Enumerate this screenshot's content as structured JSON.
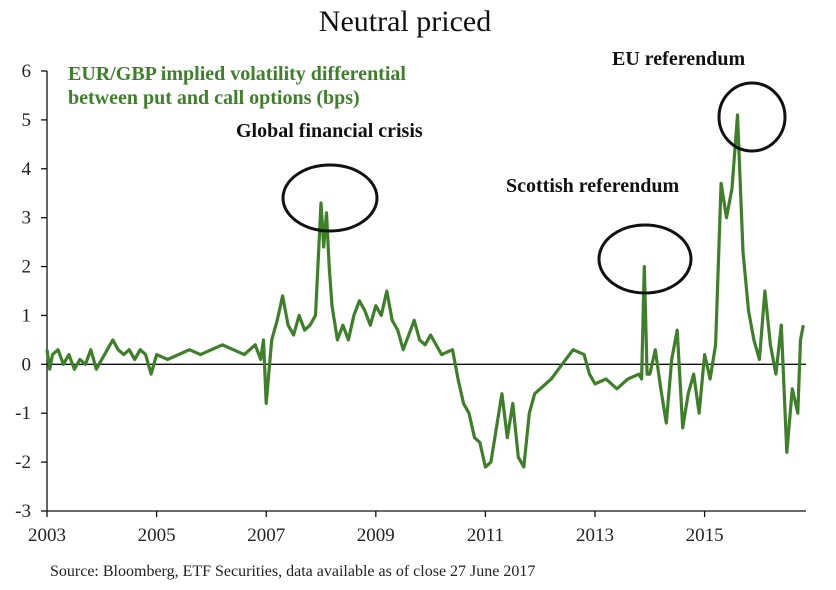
{
  "chart_data": {
    "type": "line",
    "title": "Neutral priced",
    "legend": [
      "EUR/GBP implied volatility differential",
      "between put and call options (bps)"
    ],
    "xlabel": "",
    "ylabel": "",
    "xlim": [
      2003,
      2016.85
    ],
    "ylim": [
      -3,
      6
    ],
    "x_ticks": [
      2003,
      2005,
      2007,
      2009,
      2011,
      2013,
      2015
    ],
    "y_ticks": [
      -3,
      -2,
      -1,
      0,
      1,
      2,
      3,
      4,
      5,
      6
    ],
    "line_color": "#3e7f2a",
    "series": [
      {
        "name": "EUR/GBP implied volatility differential between put and call options (bps)",
        "x": [
          2003.0,
          2003.05,
          2003.1,
          2003.2,
          2003.3,
          2003.4,
          2003.5,
          2003.6,
          2003.7,
          2003.8,
          2003.9,
          2004.0,
          2004.1,
          2004.2,
          2004.3,
          2004.4,
          2004.5,
          2004.6,
          2004.7,
          2004.8,
          2004.9,
          2005.0,
          2005.2,
          2005.4,
          2005.6,
          2005.8,
          2006.0,
          2006.2,
          2006.4,
          2006.6,
          2006.8,
          2006.9,
          2006.95,
          2007.0,
          2007.1,
          2007.2,
          2007.3,
          2007.4,
          2007.5,
          2007.6,
          2007.7,
          2007.8,
          2007.9,
          2008.0,
          2008.05,
          2008.1,
          2008.15,
          2008.2,
          2008.3,
          2008.4,
          2008.5,
          2008.6,
          2008.7,
          2008.8,
          2008.9,
          2009.0,
          2009.1,
          2009.2,
          2009.3,
          2009.4,
          2009.5,
          2009.6,
          2009.7,
          2009.8,
          2009.9,
          2010.0,
          2010.2,
          2010.4,
          2010.5,
          2010.6,
          2010.7,
          2010.8,
          2010.9,
          2011.0,
          2011.1,
          2011.2,
          2011.3,
          2011.4,
          2011.5,
          2011.6,
          2011.7,
          2011.8,
          2011.9,
          2012.0,
          2012.2,
          2012.4,
          2012.6,
          2012.8,
          2012.9,
          2013.0,
          2013.2,
          2013.4,
          2013.6,
          2013.8,
          2013.85,
          2013.9,
          2013.95,
          2014.0,
          2014.1,
          2014.2,
          2014.3,
          2014.4,
          2014.5,
          2014.6,
          2014.7,
          2014.8,
          2014.9,
          2015.0,
          2015.1,
          2015.2,
          2015.3,
          2015.4,
          2015.5,
          2015.6,
          2015.7,
          2015.8,
          2015.9,
          2016.0,
          2016.1,
          2016.2,
          2016.3,
          2016.4,
          2016.5,
          2016.6,
          2016.7,
          2016.75,
          2016.8
        ],
        "y": [
          0.3,
          -0.1,
          0.2,
          0.3,
          0.0,
          0.2,
          -0.1,
          0.1,
          0.0,
          0.3,
          -0.1,
          0.1,
          0.3,
          0.5,
          0.3,
          0.2,
          0.3,
          0.1,
          0.3,
          0.2,
          -0.2,
          0.2,
          0.1,
          0.2,
          0.3,
          0.2,
          0.3,
          0.4,
          0.3,
          0.2,
          0.4,
          0.1,
          0.5,
          -0.8,
          0.5,
          0.9,
          1.4,
          0.8,
          0.6,
          1.0,
          0.7,
          0.8,
          1.0,
          3.3,
          2.4,
          3.1,
          2.0,
          1.2,
          0.5,
          0.8,
          0.5,
          1.0,
          1.3,
          1.1,
          0.8,
          1.2,
          1.0,
          1.5,
          0.9,
          0.7,
          0.3,
          0.6,
          0.9,
          0.5,
          0.4,
          0.6,
          0.2,
          0.3,
          -0.3,
          -0.8,
          -1.0,
          -1.5,
          -1.6,
          -2.1,
          -2.0,
          -1.3,
          -0.6,
          -1.5,
          -0.8,
          -1.9,
          -2.1,
          -1.0,
          -0.6,
          -0.5,
          -0.3,
          0.0,
          0.3,
          0.2,
          -0.2,
          -0.4,
          -0.3,
          -0.5,
          -0.3,
          -0.2,
          -0.3,
          2.0,
          -0.2,
          -0.2,
          0.3,
          -0.5,
          -1.2,
          0.1,
          0.7,
          -1.3,
          -0.6,
          -0.2,
          -1.0,
          0.2,
          -0.3,
          0.4,
          3.7,
          3.0,
          3.6,
          5.1,
          2.3,
          1.1,
          0.5,
          0.1,
          1.5,
          0.4,
          -0.2,
          0.8,
          -1.8,
          -0.5,
          -1.0,
          0.5,
          0.8
        ]
      }
    ],
    "annotations": [
      {
        "label": "Global financial crisis",
        "x": 2008.1,
        "y": 3.3
      },
      {
        "label": "Scottish referendum",
        "x": 2013.85,
        "y": 2.0
      },
      {
        "label": "EU referendum",
        "x": 2015.6,
        "y": 5.1
      }
    ],
    "grid": false,
    "source": "Source: Bloomberg, ETF Securities, data available as of close 27 June 2017"
  }
}
